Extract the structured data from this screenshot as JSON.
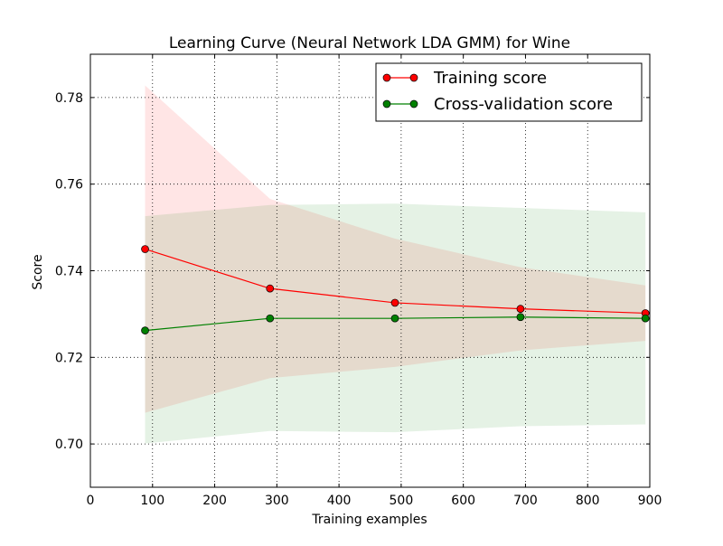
{
  "chart_data": {
    "type": "line",
    "title": "Learning Curve (Neural Network LDA GMM) for Wine",
    "xlabel": "Training examples",
    "ylabel": "Score",
    "xlim": [
      0,
      900
    ],
    "ylim": [
      0.69,
      0.79
    ],
    "x_ticks": [
      0,
      100,
      200,
      300,
      400,
      500,
      600,
      700,
      800,
      900
    ],
    "y_ticks": [
      0.7,
      0.72,
      0.74,
      0.76,
      0.78
    ],
    "x_tick_labels": [
      "0",
      "100",
      "200",
      "300",
      "400",
      "500",
      "600",
      "700",
      "800",
      "900"
    ],
    "y_tick_labels": [
      "0.70",
      "0.72",
      "0.74",
      "0.76",
      "0.78"
    ],
    "grid": true,
    "legend_position": "top-right",
    "x": [
      88,
      289,
      490,
      692,
      893
    ],
    "series": [
      {
        "name": "Training score",
        "color": "#ff0000",
        "band_color": "#ff0000",
        "values": [
          0.745,
          0.7359,
          0.7326,
          0.7312,
          0.7302
        ],
        "band_upper": [
          0.7828,
          0.7566,
          0.7474,
          0.7408,
          0.7366
        ],
        "band_lower": [
          0.7072,
          0.7152,
          0.7178,
          0.7216,
          0.7238
        ]
      },
      {
        "name": "Cross-validation score",
        "color": "#008000",
        "band_color": "#008000",
        "values": [
          0.7262,
          0.729,
          0.729,
          0.7293,
          0.729
        ],
        "band_upper": [
          0.7526,
          0.7552,
          0.7555,
          0.7545,
          0.7535
        ],
        "band_lower": [
          0.7001,
          0.703,
          0.7027,
          0.7041,
          0.7045
        ]
      }
    ]
  }
}
